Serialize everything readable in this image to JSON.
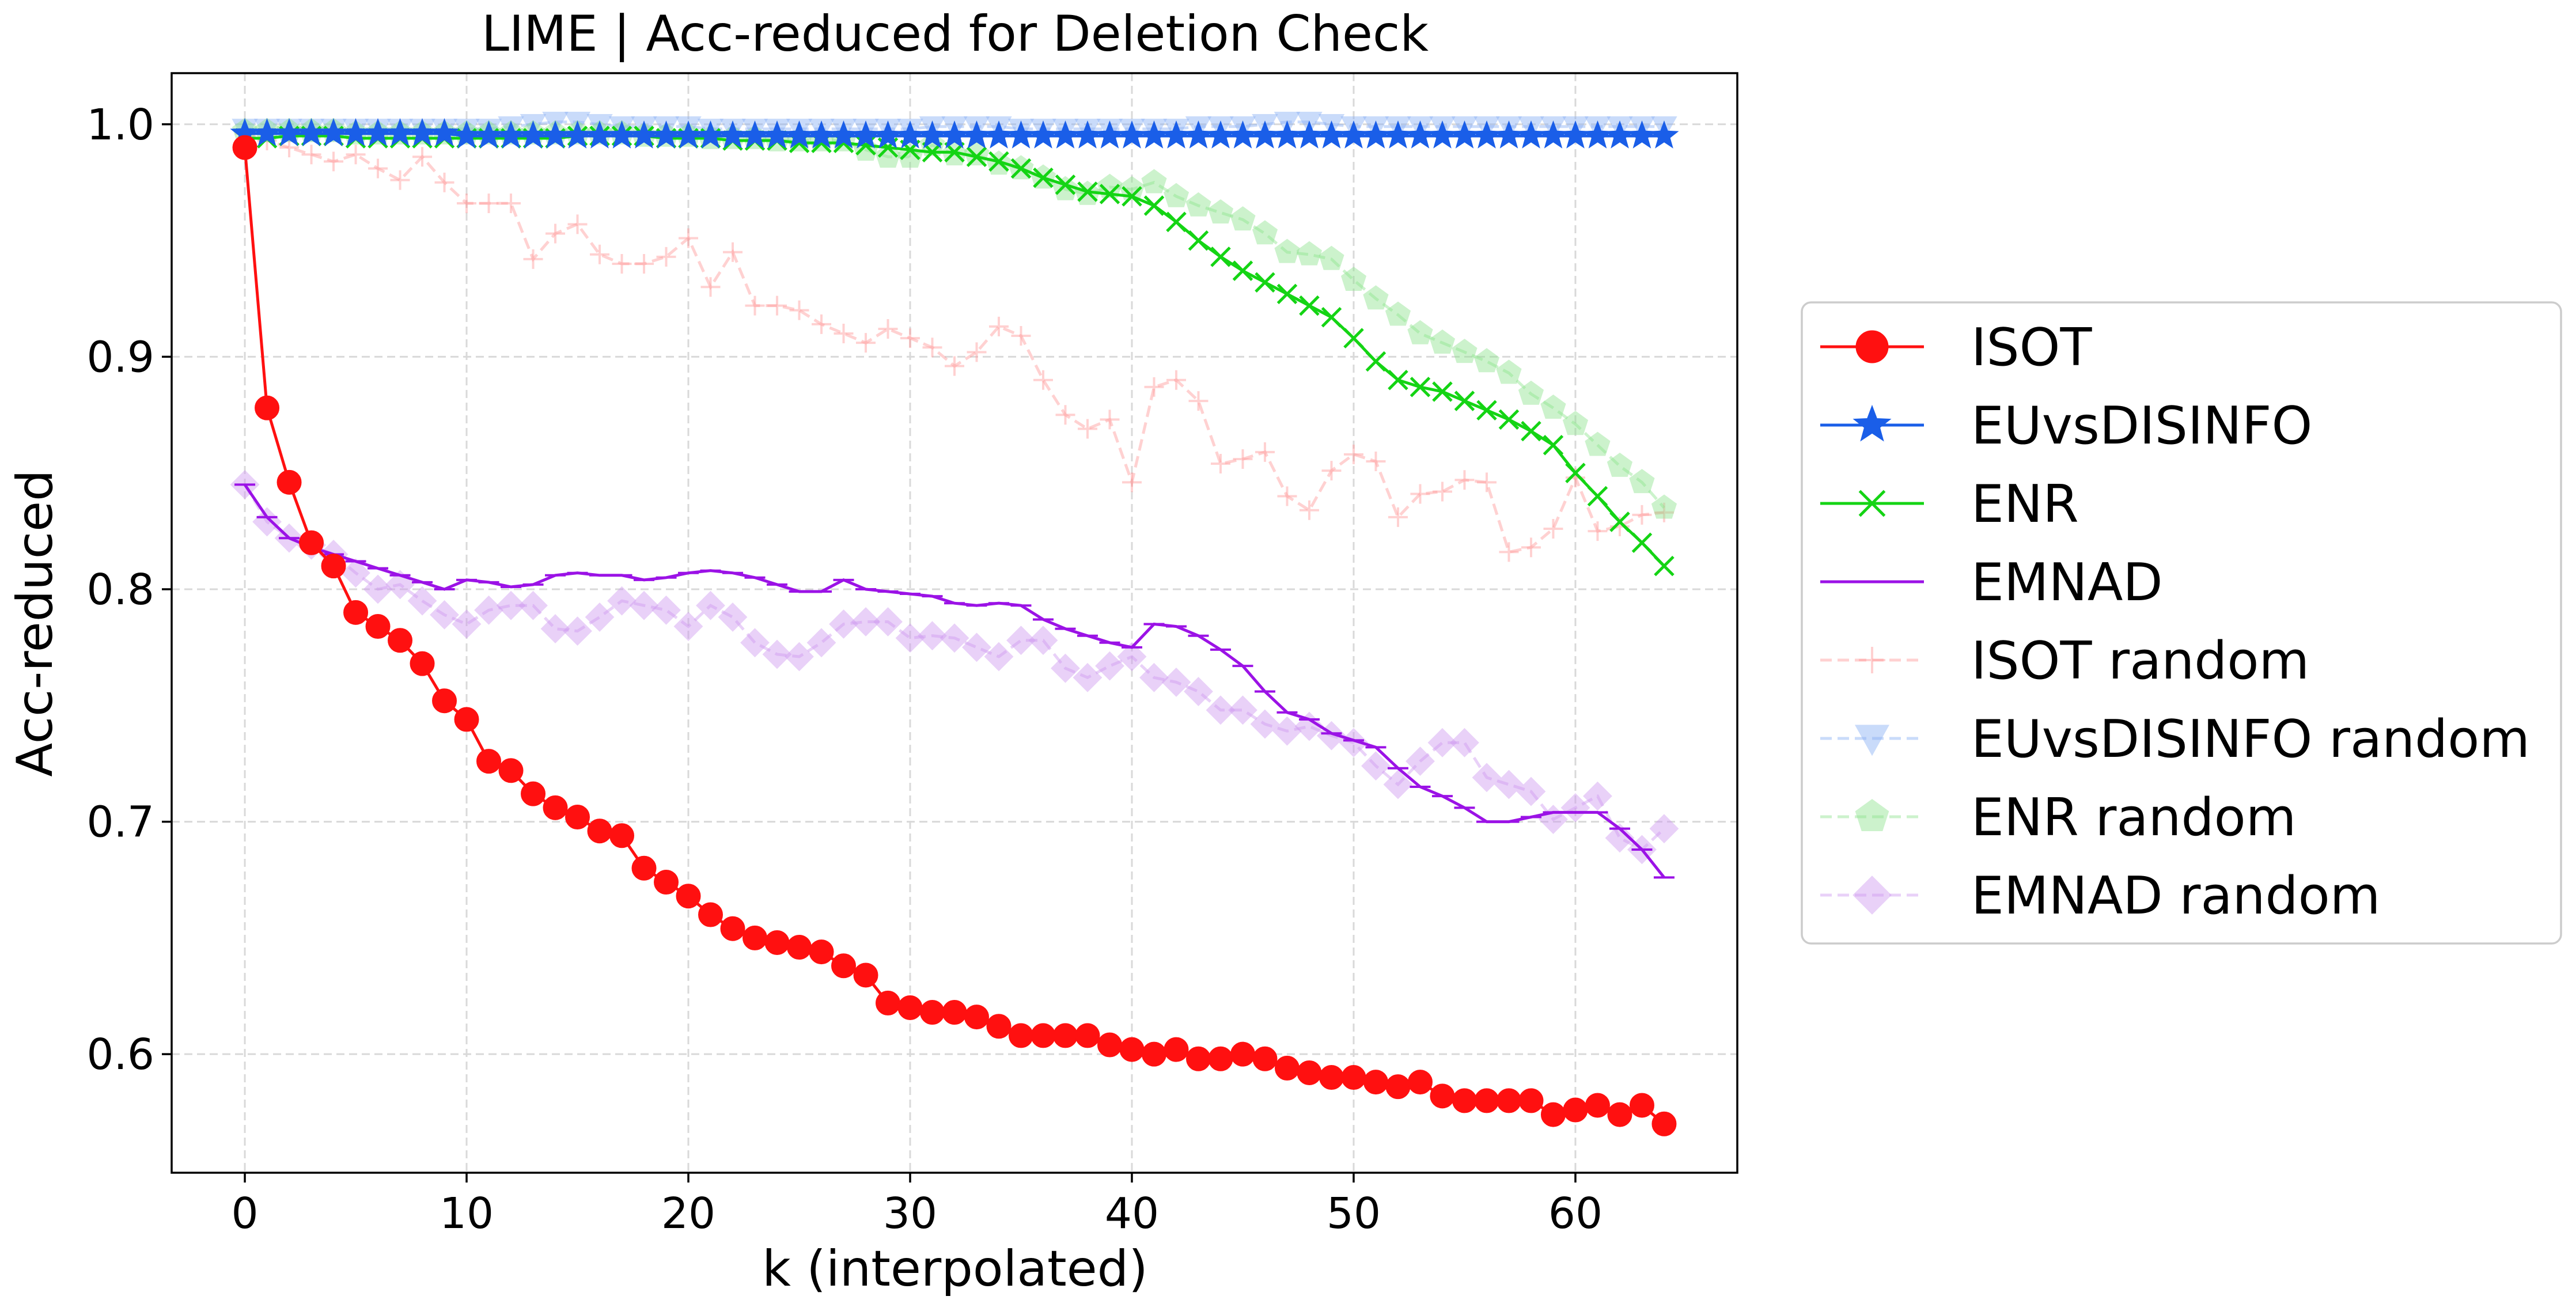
{
  "chart_data": {
    "type": "line",
    "title": "LIME | Acc-reduced for Deletion Check",
    "xlabel": "k (interpolated)",
    "ylabel": "Acc-reduced",
    "xlim": [
      -3.3,
      67.3
    ],
    "ylim": [
      0.549,
      1.022
    ],
    "xticks": [
      0,
      10,
      20,
      30,
      40,
      50,
      60
    ],
    "yticks": [
      0.6,
      0.7,
      0.8,
      0.9,
      1.0
    ],
    "ytick_labels": [
      "0.6",
      "0.7",
      "0.8",
      "0.9",
      "1.0"
    ],
    "grid": true,
    "legend_position": "right-outside",
    "series": [
      {
        "name": "ISOT",
        "color": "#ff1010",
        "marker": "circle",
        "style": "solid",
        "values": [
          0.99,
          0.878,
          0.846,
          0.82,
          0.81,
          0.79,
          0.784,
          0.778,
          0.768,
          0.752,
          0.744,
          0.726,
          0.722,
          0.712,
          0.706,
          0.702,
          0.696,
          0.694,
          0.68,
          0.674,
          0.668,
          0.66,
          0.654,
          0.65,
          0.648,
          0.646,
          0.644,
          0.638,
          0.634,
          0.622,
          0.62,
          0.618,
          0.618,
          0.616,
          0.612,
          0.608,
          0.608,
          0.608,
          0.608,
          0.604,
          0.602,
          0.6,
          0.602,
          0.598,
          0.598,
          0.6,
          0.598,
          0.594,
          0.592,
          0.59,
          0.59,
          0.588,
          0.586,
          0.588,
          0.582,
          0.58,
          0.58,
          0.58,
          0.58,
          0.574,
          0.576,
          0.578,
          0.574,
          0.578,
          0.57
        ]
      },
      {
        "name": "EUvsDISINFO",
        "color": "#1a5ee8",
        "marker": "star",
        "style": "solid",
        "values": [
          0.996,
          0.996,
          0.996,
          0.996,
          0.996,
          0.996,
          0.996,
          0.996,
          0.996,
          0.996,
          0.995,
          0.995,
          0.995,
          0.995,
          0.995,
          0.995,
          0.995,
          0.995,
          0.995,
          0.995,
          0.995,
          0.995,
          0.995,
          0.995,
          0.995,
          0.995,
          0.995,
          0.995,
          0.995,
          0.995,
          0.995,
          0.995,
          0.995,
          0.995,
          0.995,
          0.995,
          0.995,
          0.995,
          0.995,
          0.995,
          0.995,
          0.995,
          0.995,
          0.995,
          0.995,
          0.995,
          0.995,
          0.995,
          0.995,
          0.995,
          0.995,
          0.995,
          0.995,
          0.995,
          0.995,
          0.995,
          0.995,
          0.995,
          0.995,
          0.995,
          0.995,
          0.995,
          0.995,
          0.995,
          0.995
        ]
      },
      {
        "name": "ENR",
        "color": "#14d414",
        "marker": "x",
        "style": "solid",
        "values": [
          0.994,
          0.994,
          0.995,
          0.995,
          0.995,
          0.994,
          0.994,
          0.994,
          0.994,
          0.994,
          0.994,
          0.994,
          0.994,
          0.994,
          0.994,
          0.995,
          0.995,
          0.995,
          0.995,
          0.994,
          0.994,
          0.994,
          0.993,
          0.993,
          0.993,
          0.992,
          0.992,
          0.992,
          0.991,
          0.99,
          0.989,
          0.988,
          0.988,
          0.986,
          0.984,
          0.981,
          0.977,
          0.974,
          0.971,
          0.97,
          0.969,
          0.965,
          0.958,
          0.95,
          0.943,
          0.937,
          0.932,
          0.927,
          0.922,
          0.917,
          0.908,
          0.898,
          0.89,
          0.887,
          0.885,
          0.881,
          0.877,
          0.873,
          0.868,
          0.862,
          0.85,
          0.84,
          0.829,
          0.82,
          0.81
        ]
      },
      {
        "name": "EMNAD",
        "color": "#9b12e6",
        "marker": "hline",
        "style": "solid",
        "values": [
          0.845,
          0.831,
          0.822,
          0.818,
          0.815,
          0.812,
          0.809,
          0.806,
          0.803,
          0.8,
          0.804,
          0.803,
          0.801,
          0.802,
          0.806,
          0.807,
          0.806,
          0.806,
          0.804,
          0.805,
          0.807,
          0.808,
          0.807,
          0.805,
          0.802,
          0.799,
          0.799,
          0.804,
          0.8,
          0.799,
          0.798,
          0.797,
          0.794,
          0.793,
          0.794,
          0.793,
          0.787,
          0.783,
          0.78,
          0.777,
          0.775,
          0.785,
          0.784,
          0.78,
          0.774,
          0.767,
          0.756,
          0.747,
          0.744,
          0.738,
          0.735,
          0.732,
          0.723,
          0.715,
          0.711,
          0.706,
          0.7,
          0.7,
          0.702,
          0.704,
          0.704,
          0.704,
          0.697,
          0.688,
          0.676
        ]
      },
      {
        "name": "ISOT random",
        "color": "#ff9a9a",
        "marker": "plus",
        "style": "dashed",
        "values": [
          0.996,
          0.993,
          0.99,
          0.987,
          0.984,
          0.987,
          0.981,
          0.976,
          0.986,
          0.975,
          0.966,
          0.966,
          0.966,
          0.942,
          0.953,
          0.957,
          0.944,
          0.94,
          0.94,
          0.943,
          0.951,
          0.93,
          0.945,
          0.922,
          0.922,
          0.92,
          0.914,
          0.91,
          0.906,
          0.912,
          0.908,
          0.904,
          0.896,
          0.902,
          0.913,
          0.909,
          0.89,
          0.875,
          0.869,
          0.873,
          0.846,
          0.887,
          0.89,
          0.881,
          0.854,
          0.856,
          0.859,
          0.84,
          0.834,
          0.851,
          0.858,
          0.855,
          0.831,
          0.841,
          0.842,
          0.847,
          0.846,
          0.816,
          0.818,
          0.826,
          0.848,
          0.825,
          0.827,
          0.832,
          0.833
        ]
      },
      {
        "name": "EUvsDISINFO random",
        "color": "#8ab0f5",
        "marker": "triangle-down",
        "style": "dashed",
        "values": [
          0.998,
          0.998,
          0.998,
          0.998,
          0.998,
          0.998,
          0.998,
          0.998,
          0.998,
          0.998,
          0.998,
          0.998,
          0.999,
          1.0,
          1.001,
          1.001,
          1.0,
          0.999,
          0.999,
          0.999,
          0.999,
          0.998,
          0.998,
          0.998,
          0.998,
          0.998,
          0.998,
          0.998,
          0.998,
          0.998,
          0.998,
          0.999,
          0.999,
          0.999,
          0.999,
          0.998,
          0.998,
          0.998,
          0.998,
          0.998,
          0.998,
          0.998,
          0.998,
          0.999,
          0.999,
          0.999,
          1.0,
          1.001,
          1.001,
          1.0,
          0.999,
          0.999,
          0.999,
          0.999,
          0.999,
          0.999,
          0.999,
          0.999,
          0.999,
          0.999,
          0.999,
          0.999,
          0.999,
          0.999,
          0.999
        ]
      },
      {
        "name": "ENR random",
        "color": "#8fe48f",
        "marker": "pentagon",
        "style": "dashed",
        "values": [
          0.997,
          0.997,
          0.997,
          0.997,
          0.997,
          0.996,
          0.996,
          0.996,
          0.996,
          0.996,
          0.996,
          0.996,
          0.996,
          0.996,
          0.996,
          0.996,
          0.996,
          0.996,
          0.995,
          0.995,
          0.995,
          0.994,
          0.994,
          0.994,
          0.993,
          0.993,
          0.993,
          0.993,
          0.989,
          0.986,
          0.986,
          0.991,
          0.987,
          0.987,
          0.983,
          0.981,
          0.977,
          0.972,
          0.97,
          0.973,
          0.972,
          0.975,
          0.969,
          0.965,
          0.962,
          0.959,
          0.953,
          0.945,
          0.944,
          0.942,
          0.933,
          0.925,
          0.918,
          0.91,
          0.906,
          0.902,
          0.898,
          0.893,
          0.884,
          0.878,
          0.871,
          0.862,
          0.853,
          0.846,
          0.835
        ]
      },
      {
        "name": "EMNAD random",
        "color": "#cf9af0",
        "marker": "diamond",
        "style": "dashed",
        "values": [
          0.845,
          0.829,
          0.822,
          0.819,
          0.815,
          0.807,
          0.8,
          0.802,
          0.795,
          0.789,
          0.785,
          0.791,
          0.793,
          0.793,
          0.783,
          0.782,
          0.788,
          0.795,
          0.793,
          0.791,
          0.784,
          0.793,
          0.788,
          0.777,
          0.772,
          0.771,
          0.777,
          0.785,
          0.786,
          0.786,
          0.779,
          0.78,
          0.779,
          0.775,
          0.771,
          0.778,
          0.778,
          0.766,
          0.762,
          0.767,
          0.771,
          0.762,
          0.76,
          0.756,
          0.748,
          0.748,
          0.742,
          0.739,
          0.741,
          0.737,
          0.734,
          0.724,
          0.716,
          0.726,
          0.734,
          0.734,
          0.719,
          0.716,
          0.713,
          0.701,
          0.706,
          0.711,
          0.693,
          0.688,
          0.697
        ]
      }
    ]
  }
}
